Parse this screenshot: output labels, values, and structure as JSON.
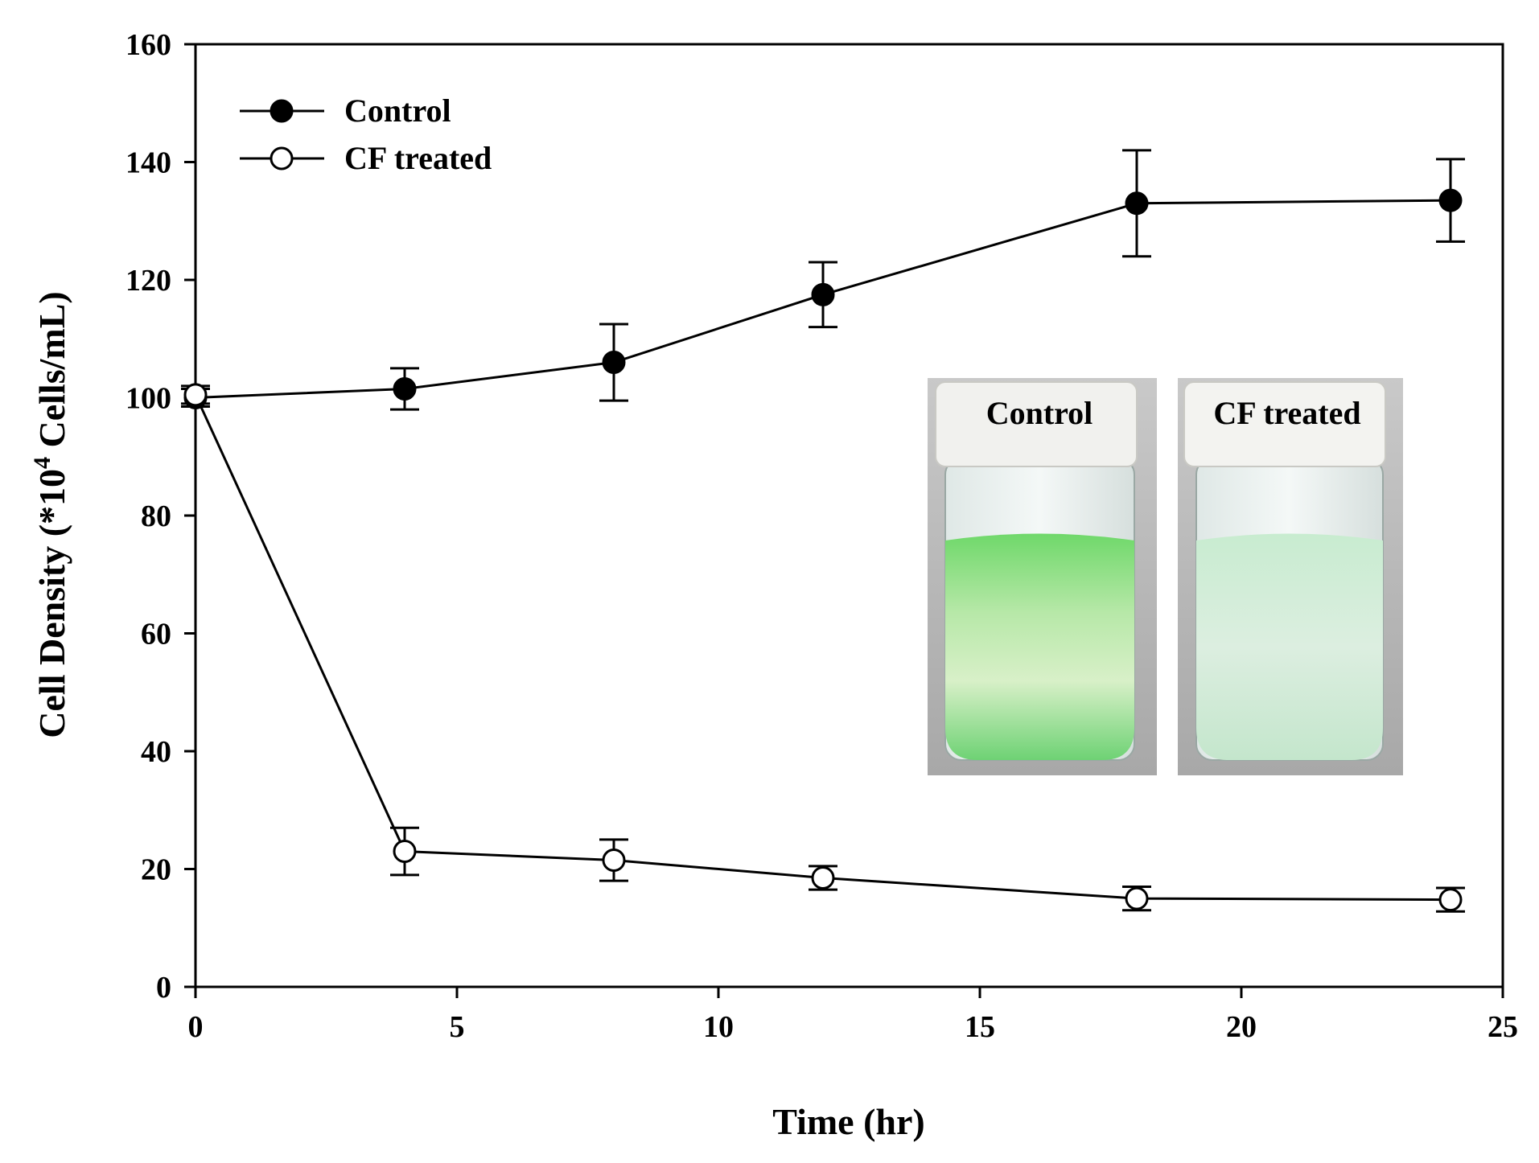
{
  "chart_data": {
    "type": "line",
    "xlabel": "Time (hr)",
    "ylabel_prefix": "Cell Density (*10",
    "ylabel_exp": "4",
    "ylabel_suffix": " Cells/mL)",
    "xlim": [
      0,
      25
    ],
    "ylim": [
      0,
      160
    ],
    "xticks": [
      0,
      5,
      10,
      15,
      20,
      25
    ],
    "yticks": [
      0,
      20,
      40,
      60,
      80,
      100,
      120,
      140,
      160
    ],
    "grid": false,
    "legend_position": "top-left",
    "series": [
      {
        "name": "Control",
        "marker": "filled-circle",
        "color": "#000000",
        "x": [
          0,
          4,
          8,
          12,
          18,
          24
        ],
        "y": [
          100,
          101.5,
          106,
          117.5,
          133,
          133.5
        ],
        "err": [
          1.5,
          3.5,
          6.5,
          5.5,
          9,
          7
        ]
      },
      {
        "name": "CF treated",
        "marker": "open-circle",
        "color": "#000000",
        "x": [
          0,
          4,
          8,
          12,
          18,
          24
        ],
        "y": [
          100.5,
          23,
          21.5,
          18.5,
          15,
          14.8
        ],
        "err": [
          1.5,
          4,
          3.5,
          2,
          2,
          2
        ]
      }
    ]
  },
  "inset": {
    "left_label": "Control",
    "right_label": "CF treated",
    "control_liquid_color": "#7ed87a",
    "treated_liquid_color": "#d4ecd8"
  }
}
